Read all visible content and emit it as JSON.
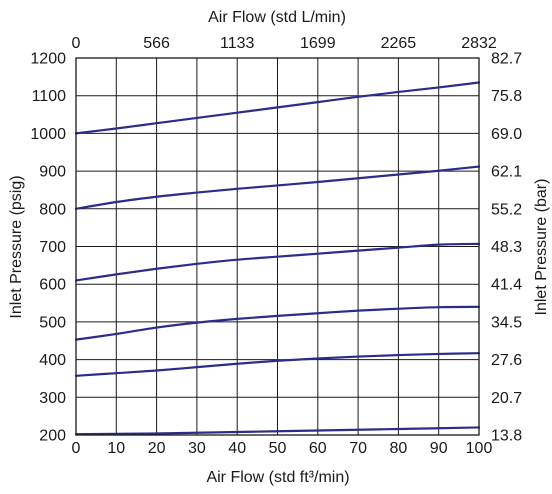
{
  "chart_data": {
    "type": "line",
    "xlabel": "Air Flow (std ft³/min)",
    "x2label": "Air Flow (std L/min)",
    "ylabel": "Inlet Pressure (psig)",
    "y2label": "Inlet Pressure (bar)",
    "xlim": [
      0,
      100
    ],
    "ylim": [
      200,
      1200
    ],
    "x_ticks": [
      0,
      10,
      20,
      30,
      40,
      50,
      60,
      70,
      80,
      90,
      100
    ],
    "y_ticks": [
      200,
      300,
      400,
      500,
      600,
      700,
      800,
      900,
      1000,
      1100,
      1200
    ],
    "x2_tick_labels": [
      "0",
      "566",
      "1133",
      "1699",
      "2265",
      "2832"
    ],
    "y2_tick_labels": [
      "13.8",
      "20.7",
      "27.6",
      "34.5",
      "41.4",
      "48.3",
      "55.2",
      "62.1",
      "69.0",
      "75.8",
      "82.7"
    ],
    "grid": true,
    "line_color": "#2b2d8a",
    "series": [
      {
        "x": [
          0,
          10,
          20,
          30,
          40,
          50,
          60,
          70,
          80,
          90,
          100
        ],
        "y": [
          1000,
          1013,
          1027,
          1041,
          1055,
          1069,
          1083,
          1097,
          1110,
          1122,
          1135
        ]
      },
      {
        "x": [
          0,
          10,
          20,
          30,
          40,
          50,
          60,
          70,
          80,
          90,
          100
        ],
        "y": [
          800,
          818,
          832,
          843,
          853,
          862,
          871,
          881,
          891,
          901,
          912
        ]
      },
      {
        "x": [
          0,
          10,
          20,
          30,
          40,
          50,
          60,
          70,
          80,
          90,
          100
        ],
        "y": [
          610,
          626,
          641,
          654,
          665,
          673,
          681,
          689,
          697,
          705,
          707
        ]
      },
      {
        "x": [
          0,
          10,
          20,
          30,
          40,
          50,
          60,
          70,
          80,
          90,
          100
        ],
        "y": [
          453,
          468,
          485,
          498,
          508,
          516,
          523,
          530,
          535,
          539,
          540
        ]
      },
      {
        "x": [
          0,
          10,
          20,
          30,
          40,
          50,
          60,
          70,
          80,
          90,
          100
        ],
        "y": [
          357,
          364,
          371,
          380,
          389,
          397,
          403,
          408,
          412,
          415,
          417
        ]
      },
      {
        "x": [
          0,
          10,
          20,
          30,
          40,
          50,
          60,
          70,
          80,
          90,
          100
        ],
        "y": [
          202,
          203,
          204,
          206,
          208,
          210,
          212,
          214,
          216,
          218,
          220
        ]
      }
    ]
  }
}
